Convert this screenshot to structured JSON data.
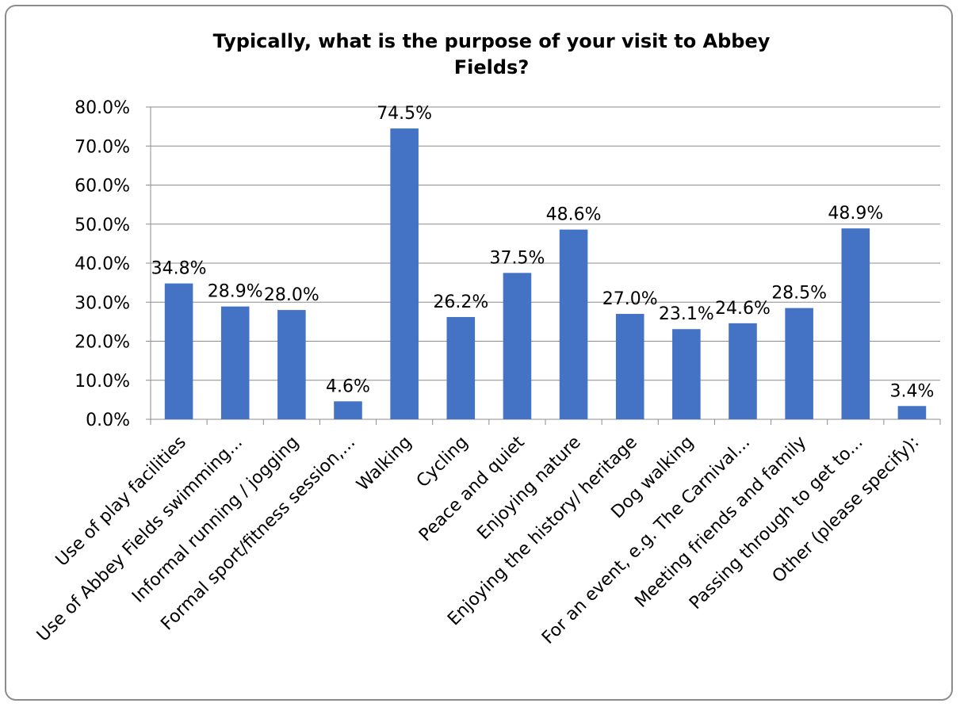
{
  "chart_data": {
    "type": "bar",
    "title_lines": [
      "Typically, what is the purpose of your visit to Abbey",
      "Fields?"
    ],
    "categories": [
      "Use of play facilities",
      "Use of Abbey Fields swimming...",
      "Informal running / jogging",
      "Formal sport/fitness session,...",
      "Walking",
      "Cycling",
      "Peace and quiet",
      "Enjoying nature",
      "Enjoying the history/ heritage",
      "Dog walking",
      "For an event, e.g. The Carnival...",
      "Meeting friends and family",
      "Passing through to get to...",
      "Other (please specify):"
    ],
    "values": [
      34.8,
      28.9,
      28.0,
      4.6,
      74.5,
      26.2,
      37.5,
      48.6,
      27.0,
      23.1,
      24.6,
      28.5,
      48.9,
      3.4
    ],
    "value_labels": [
      "34.8%",
      "28.9%",
      "28.0%",
      "4.6%",
      "74.5%",
      "26.2%",
      "37.5%",
      "48.6%",
      "27.0%",
      "23.1%",
      "24.6%",
      "28.5%",
      "48.9%",
      "3.4%"
    ],
    "y_ticks": [
      "0.0%",
      "10.0%",
      "20.0%",
      "30.0%",
      "40.0%",
      "50.0%",
      "60.0%",
      "70.0%",
      "80.0%"
    ],
    "ylim": [
      0,
      80
    ],
    "grid": true,
    "legend": "none",
    "bar_color": "#4472C4",
    "grid_color": "#8c8c8c"
  }
}
